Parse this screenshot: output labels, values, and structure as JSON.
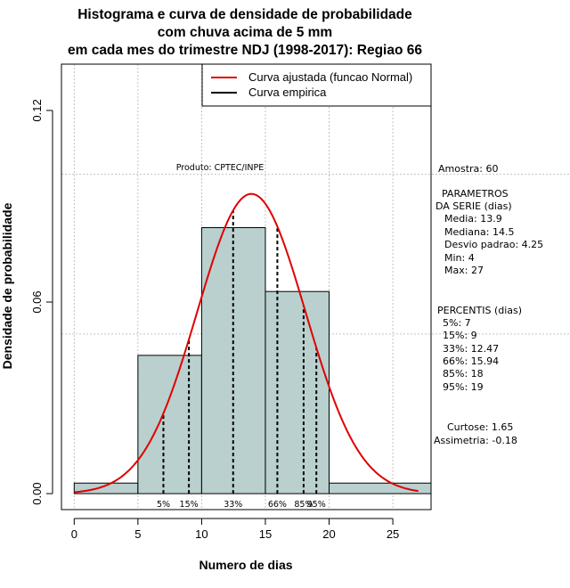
{
  "chart_data": {
    "type": "bar",
    "title": [
      "Histograma e curva de densidade de probabilidade",
      "com chuva acima de 5 mm",
      "em cada mes do trimestre NDJ (1998-2017): Regiao 66"
    ],
    "xlabel": "Numero de dias",
    "ylabel": "Densidade de probabilidade",
    "xlim": [
      -1,
      28
    ],
    "ylim": [
      -0.005,
      0.1345
    ],
    "x_ticks": [
      0,
      5,
      10,
      15,
      20,
      25
    ],
    "y_ticks": [
      0.0,
      0.06,
      0.12
    ],
    "y_tick_labels": [
      "0.00",
      "0.06",
      "0.12"
    ],
    "bins": [
      {
        "from": 0,
        "to": 5,
        "density": 0.0033
      },
      {
        "from": 5,
        "to": 10,
        "density": 0.0433
      },
      {
        "from": 10,
        "to": 15,
        "density": 0.0833
      },
      {
        "from": 15,
        "to": 20,
        "density": 0.0633
      },
      {
        "from": 20,
        "to": 28,
        "density": 0.0033
      }
    ],
    "normal_curve": {
      "mean": 13.9,
      "sd": 4.25,
      "x_from": 0,
      "x_to": 27
    },
    "percentile_lines": [
      {
        "label": "5%",
        "x": 7
      },
      {
        "label": "15%",
        "x": 9
      },
      {
        "label": "33%",
        "x": 12.47
      },
      {
        "label": "66%",
        "x": 15.94
      },
      {
        "label": "85%",
        "x": 18
      },
      {
        "label": "95%",
        "x": 19
      }
    ],
    "hgrid": [
      0.05,
      0.1
    ],
    "vgrid": [
      0,
      5,
      10,
      15,
      20,
      25
    ],
    "legend": {
      "position": "top-right",
      "entries": [
        {
          "label": "Curva ajustada (funcao Normal)",
          "color": "#e00000"
        },
        {
          "label": "Curva empirica",
          "color": "#000000"
        }
      ]
    },
    "annotation": "Produto: CPTEC/INPE"
  },
  "side_panel": {
    "amostra": "Amostra: 60",
    "param_title_1": "PARAMETROS",
    "param_title_2": "DA SERIE (dias)",
    "media": "Media: 13.9",
    "mediana": "Mediana: 14.5",
    "desvio": "Desvio padrao: 4.25",
    "min": "Min: 4",
    "max": "Max: 27",
    "pct_title": "PERCENTIS (dias)",
    "p5": "5%: 7",
    "p15": "15%: 9",
    "p33": "33%: 12.47",
    "p66": "66%: 15.94",
    "p85": "85%: 18",
    "p95": "95%: 19",
    "curtose": "Curtose: 1.65",
    "assimetria": "Assimetria: -0.18"
  },
  "colors": {
    "bar_fill": "#b9d0cf",
    "curve": "#e00000",
    "grid": "#b3b3b3"
  }
}
